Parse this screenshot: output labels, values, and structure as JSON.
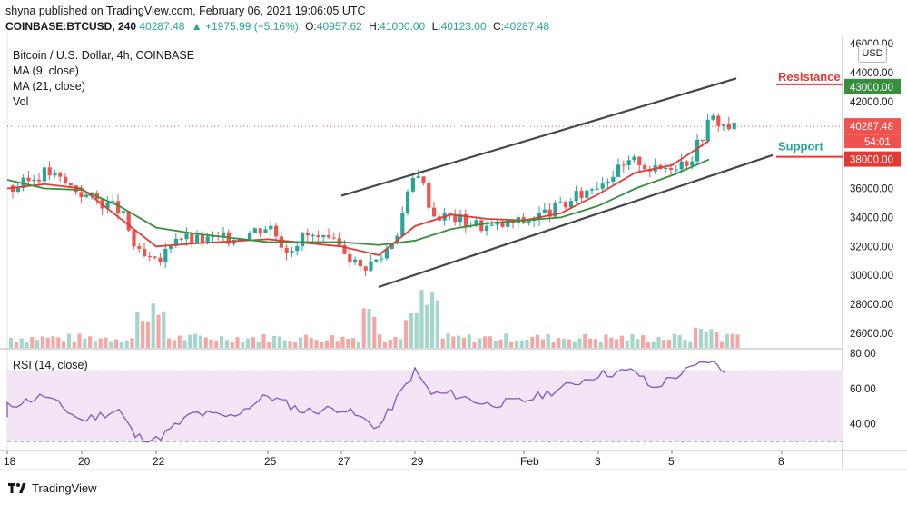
{
  "header": {
    "published": "shyna published on TradingView.com, February 06, 2021 19:06:05 UTC",
    "symbol": "COINBASE:BTCUSD, 240",
    "last": "40287.48",
    "change": "▲ +1975.99 (+5.16%)",
    "open_label": "O:",
    "open": "40957.62",
    "high_label": "H:",
    "high": "41000.00",
    "low_label": "L:",
    "low": "40123.00",
    "close_label": "C:",
    "close": "40287.48"
  },
  "legend": {
    "title": "Bitcoin / U.S. Dollar, 4h, COINBASE",
    "ma9": "MA (9, close)",
    "ma21": "MA (21, close)",
    "vol": "Vol"
  },
  "rsi_label": "RSI (14, close)",
  "currency_button": "USD",
  "footer": {
    "brand": "TradingView"
  },
  "colors": {
    "up": "#26a69a",
    "down": "#ef5350",
    "ma9": "#e53935",
    "ma21": "#388e3c",
    "resistance": "#e53935",
    "support": "#26a69a",
    "rsi": "#7e57c2",
    "rsi_band": "#f3e5f5",
    "channel": "#434651"
  },
  "chart_data": [
    {
      "type": "candlestick",
      "title": "Bitcoin / U.S. Dollar, 4h, COINBASE",
      "x_tick_labels": [
        "18",
        "20",
        "22",
        "25",
        "27",
        "29",
        "Feb",
        "3",
        "5",
        "8"
      ],
      "y_tick_labels": [
        "26000.00",
        "28000.00",
        "30000.00",
        "32000.00",
        "34000.00",
        "36000.00",
        "38000.00",
        "40000.00",
        "42000.00",
        "44000.00",
        "46000.00"
      ],
      "ylim": [
        25000,
        46500
      ],
      "last_price": 40287.48,
      "countdown": "54:01",
      "levels": [
        {
          "name": "Resistance",
          "value": 43000,
          "label": "43000.00"
        },
        {
          "name": "Support",
          "value": 38000,
          "label": "38000.00"
        }
      ],
      "annotations": [
        "Resistance",
        "Support"
      ],
      "channel_lines": [
        {
          "from": [
            "Jan 27",
            35500
          ],
          "to": [
            "Feb 6",
            43600
          ]
        },
        {
          "from": [
            "Jan 28",
            29200
          ],
          "to": [
            "Feb 7",
            38300
          ]
        }
      ],
      "close_path": [
        {
          "x": "Jan 17",
          "y": 36200
        },
        {
          "x": "Jan 18",
          "y": 35800
        },
        {
          "x": "Jan 19",
          "y": 37200
        },
        {
          "x": "Jan 20",
          "y": 35600
        },
        {
          "x": "Jan 21",
          "y": 34500
        },
        {
          "x": "Jan 21",
          "y": 31500
        },
        {
          "x": "Jan 22",
          "y": 30700
        },
        {
          "x": "Jan 22",
          "y": 32800
        },
        {
          "x": "Jan 23",
          "y": 32400
        },
        {
          "x": "Jan 24",
          "y": 32600
        },
        {
          "x": "Jan 25",
          "y": 33500
        },
        {
          "x": "Jan 25",
          "y": 31800
        },
        {
          "x": "Jan 26",
          "y": 32800
        },
        {
          "x": "Jan 27",
          "y": 31900
        },
        {
          "x": "Jan 27",
          "y": 30500
        },
        {
          "x": "Jan 28",
          "y": 31200
        },
        {
          "x": "Jan 28",
          "y": 33000
        },
        {
          "x": "Jan 29",
          "y": 37500
        },
        {
          "x": "Jan 29",
          "y": 34200
        },
        {
          "x": "Jan 30",
          "y": 34000
        },
        {
          "x": "Jan 31",
          "y": 33300
        },
        {
          "x": "Feb 1",
          "y": 33800
        },
        {
          "x": "Feb 2",
          "y": 34800
        },
        {
          "x": "Feb 3",
          "y": 36500
        },
        {
          "x": "Feb 3",
          "y": 37200
        },
        {
          "x": "Feb 4",
          "y": 38000
        },
        {
          "x": "Feb 4",
          "y": 37200
        },
        {
          "x": "Feb 5",
          "y": 37700
        },
        {
          "x": "Feb 5",
          "y": 38000
        },
        {
          "x": "Feb 6",
          "y": 40900
        },
        {
          "x": "Feb 6",
          "y": 40287
        }
      ],
      "volume_note": "Volume histogram bars under price",
      "series": [
        {
          "name": "MA (9, close)",
          "color": "#e53935",
          "values": [
            {
              "x": "Jan 17",
              "y": 36000
            },
            {
              "x": "Jan 19",
              "y": 36300
            },
            {
              "x": "Jan 20",
              "y": 36000
            },
            {
              "x": "Jan 21",
              "y": 34000
            },
            {
              "x": "Jan 22",
              "y": 32000
            },
            {
              "x": "Jan 23",
              "y": 32200
            },
            {
              "x": "Jan 25",
              "y": 32500
            },
            {
              "x": "Jan 27",
              "y": 32000
            },
            {
              "x": "Jan 28",
              "y": 31400
            },
            {
              "x": "Jan 29",
              "y": 33400
            },
            {
              "x": "Jan 30",
              "y": 34200
            },
            {
              "x": "Jan 31",
              "y": 33900
            },
            {
              "x": "Feb 1",
              "y": 33800
            },
            {
              "x": "Feb 2",
              "y": 34300
            },
            {
              "x": "Feb 3",
              "y": 35600
            },
            {
              "x": "Feb 4",
              "y": 37100
            },
            {
              "x": "Feb 5",
              "y": 37600
            },
            {
              "x": "Feb 6",
              "y": 39300
            }
          ]
        },
        {
          "name": "MA (21, close)",
          "color": "#388e3c",
          "values": [
            {
              "x": "Jan 17",
              "y": 36600
            },
            {
              "x": "Jan 19",
              "y": 36000
            },
            {
              "x": "Jan 20",
              "y": 35900
            },
            {
              "x": "Jan 21",
              "y": 34800
            },
            {
              "x": "Jan 22",
              "y": 33300
            },
            {
              "x": "Jan 23",
              "y": 32900
            },
            {
              "x": "Jan 25",
              "y": 32300
            },
            {
              "x": "Jan 27",
              "y": 32300
            },
            {
              "x": "Jan 28",
              "y": 32100
            },
            {
              "x": "Jan 29",
              "y": 32400
            },
            {
              "x": "Jan 30",
              "y": 33200
            },
            {
              "x": "Jan 31",
              "y": 33600
            },
            {
              "x": "Feb 1",
              "y": 33800
            },
            {
              "x": "Feb 2",
              "y": 34000
            },
            {
              "x": "Feb 3",
              "y": 34800
            },
            {
              "x": "Feb 4",
              "y": 36000
            },
            {
              "x": "Feb 5",
              "y": 36900
            },
            {
              "x": "Feb 6",
              "y": 38000
            }
          ]
        }
      ]
    },
    {
      "type": "line",
      "title": "RSI (14, close)",
      "y_tick_labels": [
        "40.00",
        "60.00",
        "80.00"
      ],
      "ylim": [
        28,
        82
      ],
      "bands": [
        30,
        70
      ],
      "series": [
        {
          "name": "RSI (14, close)",
          "color": "#7e57c2",
          "values": [
            {
              "x": "Jan 17",
              "y": 43
            },
            {
              "x": "Jan 18",
              "y": 50
            },
            {
              "x": "Jan 19",
              "y": 56
            },
            {
              "x": "Jan 20",
              "y": 42
            },
            {
              "x": "Jan 21",
              "y": 48
            },
            {
              "x": "Jan 21",
              "y": 33
            },
            {
              "x": "Jan 22",
              "y": 31
            },
            {
              "x": "Jan 23",
              "y": 46
            },
            {
              "x": "Jan 24",
              "y": 44
            },
            {
              "x": "Jan 25",
              "y": 56
            },
            {
              "x": "Jan 26",
              "y": 47
            },
            {
              "x": "Jan 27",
              "y": 49
            },
            {
              "x": "Jan 28",
              "y": 38
            },
            {
              "x": "Jan 29",
              "y": 70
            },
            {
              "x": "Jan 29",
              "y": 57
            },
            {
              "x": "Jan 30",
              "y": 57
            },
            {
              "x": "Jan 31",
              "y": 51
            },
            {
              "x": "Feb 1",
              "y": 53
            },
            {
              "x": "Feb 2",
              "y": 60
            },
            {
              "x": "Feb 3",
              "y": 68
            },
            {
              "x": "Feb 4",
              "y": 70
            },
            {
              "x": "Feb 4",
              "y": 60
            },
            {
              "x": "Feb 5",
              "y": 66
            },
            {
              "x": "Feb 6",
              "y": 76
            },
            {
              "x": "Feb 6",
              "y": 69
            }
          ]
        }
      ]
    }
  ]
}
